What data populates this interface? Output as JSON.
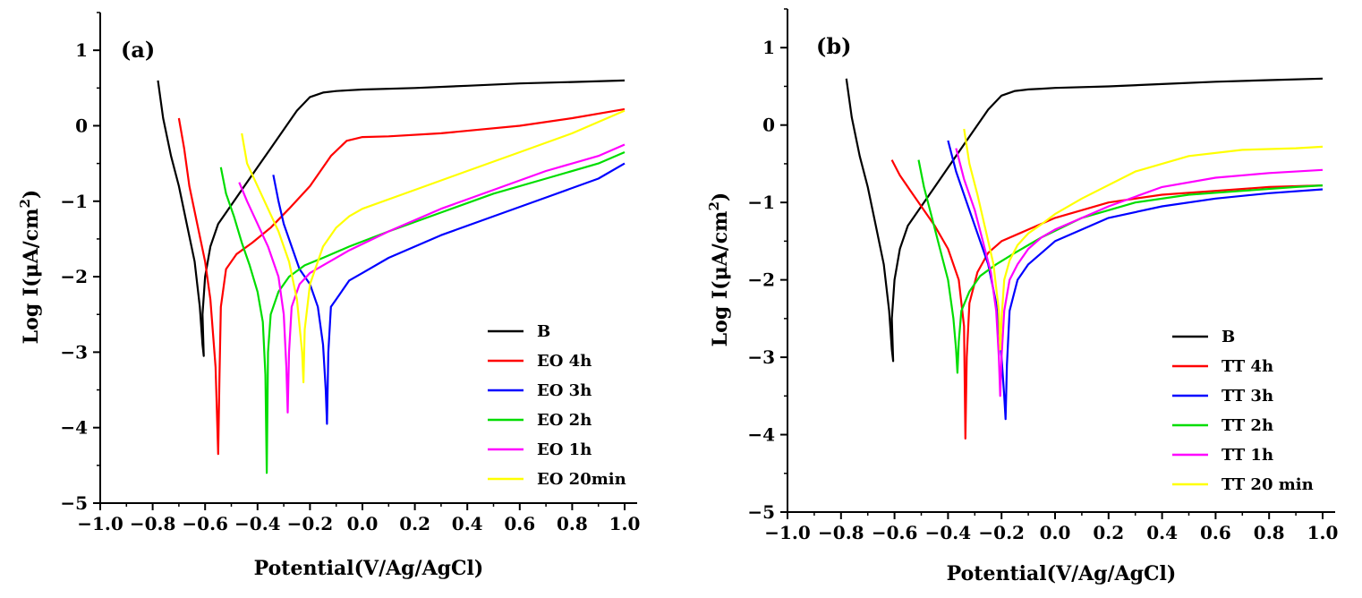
{
  "chart_data": [
    {
      "type": "line",
      "panel_label": "(a)",
      "xlabel": "Potential(V/Ag/AgCl)",
      "ylabel_prefix": "Log I(μA/cm",
      "ylabel_sup": "2",
      "ylabel_suffix": ")",
      "xlim": [
        -1.0,
        1.0
      ],
      "ylim": [
        -5,
        1.5
      ],
      "xticks": [
        -1.0,
        -0.8,
        -0.6,
        -0.4,
        -0.2,
        0.0,
        0.2,
        0.4,
        0.6,
        0.8,
        1.0
      ],
      "xtick_labels": [
        "−1.0",
        "−0.8",
        "−0.6",
        "−0.4",
        "−0.2",
        "0.0",
        "0.2",
        "0.4",
        "0.6",
        "0.8",
        "1.0"
      ],
      "yticks": [
        -5,
        -4,
        -3,
        -2,
        -1,
        0,
        1
      ],
      "ytick_labels": [
        "−5",
        "−4",
        "−3",
        "−2",
        "−1",
        "0",
        "1"
      ],
      "legend_position": "bottom-right",
      "series": [
        {
          "name": "B",
          "color": "#000000",
          "x": [
            -0.78,
            -0.76,
            -0.73,
            -0.7,
            -0.67,
            -0.64,
            -0.62,
            -0.61,
            -0.605,
            -0.61,
            -0.6,
            -0.58,
            -0.55,
            -0.5,
            -0.45,
            -0.4,
            -0.35,
            -0.3,
            -0.25,
            -0.2,
            -0.15,
            -0.1,
            -0.05,
            0.0,
            0.2,
            0.4,
            0.6,
            0.8,
            1.0
          ],
          "y": [
            0.6,
            0.1,
            -0.4,
            -0.8,
            -1.3,
            -1.8,
            -2.4,
            -2.9,
            -3.05,
            -2.5,
            -2.0,
            -1.6,
            -1.3,
            -1.05,
            -0.8,
            -0.55,
            -0.3,
            -0.05,
            0.2,
            0.38,
            0.44,
            0.46,
            0.47,
            0.48,
            0.5,
            0.53,
            0.56,
            0.58,
            0.6
          ]
        },
        {
          "name": "EO 4h",
          "color": "#ff0000",
          "x": [
            -0.7,
            -0.68,
            -0.66,
            -0.63,
            -0.6,
            -0.58,
            -0.56,
            -0.55,
            -0.545,
            -0.54,
            -0.52,
            -0.48,
            -0.42,
            -0.35,
            -0.28,
            -0.2,
            -0.12,
            -0.06,
            0.0,
            0.1,
            0.3,
            0.6,
            0.8,
            1.0
          ],
          "y": [
            0.1,
            -0.3,
            -0.8,
            -1.3,
            -1.8,
            -2.3,
            -3.2,
            -4.35,
            -3.3,
            -2.4,
            -1.9,
            -1.7,
            -1.55,
            -1.35,
            -1.1,
            -0.8,
            -0.4,
            -0.2,
            -0.15,
            -0.14,
            -0.1,
            0.0,
            0.1,
            0.22
          ]
        },
        {
          "name": "EO 3h",
          "color": "#0000ff",
          "x": [
            -0.34,
            -0.32,
            -0.3,
            -0.27,
            -0.24,
            -0.2,
            -0.17,
            -0.15,
            -0.14,
            -0.135,
            -0.13,
            -0.12,
            -0.1,
            -0.05,
            0.0,
            0.1,
            0.3,
            0.5,
            0.7,
            0.9,
            1.0
          ],
          "y": [
            -0.65,
            -1.0,
            -1.3,
            -1.6,
            -1.9,
            -2.1,
            -2.4,
            -2.9,
            -3.5,
            -3.95,
            -3.0,
            -2.4,
            -2.3,
            -2.05,
            -1.95,
            -1.75,
            -1.45,
            -1.2,
            -0.95,
            -0.7,
            -0.5
          ]
        },
        {
          "name": "EO 2h",
          "color": "#00dd00",
          "x": [
            -0.54,
            -0.52,
            -0.49,
            -0.46,
            -0.43,
            -0.4,
            -0.38,
            -0.37,
            -0.365,
            -0.36,
            -0.35,
            -0.32,
            -0.28,
            -0.22,
            -0.15,
            -0.05,
            0.1,
            0.3,
            0.5,
            0.7,
            0.9,
            1.0
          ],
          "y": [
            -0.55,
            -0.9,
            -1.2,
            -1.55,
            -1.85,
            -2.2,
            -2.6,
            -3.3,
            -4.6,
            -3.0,
            -2.5,
            -2.2,
            -2.0,
            -1.85,
            -1.75,
            -1.6,
            -1.4,
            -1.15,
            -0.9,
            -0.7,
            -0.5,
            -0.35
          ]
        },
        {
          "name": "EO 1h",
          "color": "#ff00ff",
          "x": [
            -0.47,
            -0.44,
            -0.4,
            -0.36,
            -0.32,
            -0.3,
            -0.29,
            -0.285,
            -0.28,
            -0.27,
            -0.24,
            -0.2,
            -0.15,
            -0.05,
            0.1,
            0.3,
            0.5,
            0.7,
            0.9,
            1.0
          ],
          "y": [
            -0.75,
            -1.0,
            -1.3,
            -1.6,
            -2.0,
            -2.5,
            -3.2,
            -3.8,
            -3.0,
            -2.4,
            -2.1,
            -1.95,
            -1.85,
            -1.65,
            -1.4,
            -1.1,
            -0.85,
            -0.6,
            -0.4,
            -0.25
          ]
        },
        {
          "name": "EO 20min",
          "color": "#ffff00",
          "x": [
            -0.46,
            -0.44,
            -0.4,
            -0.36,
            -0.32,
            -0.28,
            -0.25,
            -0.23,
            -0.225,
            -0.22,
            -0.2,
            -0.15,
            -0.1,
            -0.05,
            0.0,
            0.2,
            0.4,
            0.6,
            0.8,
            1.0
          ],
          "y": [
            -0.1,
            -0.5,
            -0.8,
            -1.1,
            -1.4,
            -1.8,
            -2.3,
            -3.0,
            -3.4,
            -2.7,
            -2.1,
            -1.6,
            -1.35,
            -1.2,
            -1.1,
            -0.85,
            -0.6,
            -0.35,
            -0.1,
            0.2
          ]
        }
      ]
    },
    {
      "type": "line",
      "panel_label": "(b)",
      "xlabel": "Potential(V/Ag/AgCl)",
      "ylabel_prefix": "Log I(μA/cm",
      "ylabel_sup": "2",
      "ylabel_suffix": ")",
      "xlim": [
        -1.0,
        1.0
      ],
      "ylim": [
        -5,
        1.5
      ],
      "xticks": [
        -1.0,
        -0.8,
        -0.6,
        -0.4,
        -0.2,
        0.0,
        0.2,
        0.4,
        0.6,
        0.8,
        1.0
      ],
      "xtick_labels": [
        "−1.0",
        "−0.8",
        "−0.6",
        "−0.4",
        "−0.2",
        "0.0",
        "0.2",
        "0.4",
        "0.6",
        "0.8",
        "1.0"
      ],
      "yticks": [
        -5,
        -4,
        -3,
        -2,
        -1,
        0,
        1
      ],
      "ytick_labels": [
        "−5",
        "−4",
        "−3",
        "−2",
        "−1",
        "0",
        "1"
      ],
      "legend_position": "bottom-right",
      "series": [
        {
          "name": "B",
          "color": "#000000",
          "x": [
            -0.78,
            -0.76,
            -0.73,
            -0.7,
            -0.67,
            -0.64,
            -0.62,
            -0.61,
            -0.605,
            -0.61,
            -0.6,
            -0.58,
            -0.55,
            -0.5,
            -0.45,
            -0.4,
            -0.35,
            -0.3,
            -0.25,
            -0.2,
            -0.15,
            -0.1,
            -0.05,
            0.0,
            0.2,
            0.4,
            0.6,
            0.8,
            1.0
          ],
          "y": [
            0.6,
            0.1,
            -0.4,
            -0.8,
            -1.3,
            -1.8,
            -2.4,
            -2.9,
            -3.05,
            -2.5,
            -2.0,
            -1.6,
            -1.3,
            -1.05,
            -0.8,
            -0.55,
            -0.3,
            -0.05,
            0.2,
            0.38,
            0.44,
            0.46,
            0.47,
            0.48,
            0.5,
            0.53,
            0.56,
            0.58,
            0.6
          ]
        },
        {
          "name": "TT 4h",
          "color": "#ff0000",
          "x": [
            -0.61,
            -0.58,
            -0.54,
            -0.5,
            -0.45,
            -0.4,
            -0.36,
            -0.34,
            -0.335,
            -0.33,
            -0.32,
            -0.29,
            -0.25,
            -0.2,
            -0.1,
            0.0,
            0.2,
            0.4,
            0.6,
            0.8,
            1.0
          ],
          "y": [
            -0.45,
            -0.65,
            -0.85,
            -1.05,
            -1.3,
            -1.6,
            -2.0,
            -2.6,
            -4.05,
            -3.0,
            -2.3,
            -1.9,
            -1.65,
            -1.5,
            -1.35,
            -1.2,
            -1.0,
            -0.9,
            -0.85,
            -0.8,
            -0.78
          ]
        },
        {
          "name": "TT 3h",
          "color": "#0000ff",
          "x": [
            -0.4,
            -0.37,
            -0.33,
            -0.29,
            -0.25,
            -0.22,
            -0.2,
            -0.19,
            -0.185,
            -0.18,
            -0.17,
            -0.14,
            -0.1,
            -0.05,
            0.0,
            0.2,
            0.4,
            0.6,
            0.8,
            1.0
          ],
          "y": [
            -0.2,
            -0.6,
            -1.0,
            -1.4,
            -1.8,
            -2.3,
            -3.0,
            -3.5,
            -3.8,
            -3.1,
            -2.4,
            -2.0,
            -1.8,
            -1.65,
            -1.5,
            -1.2,
            -1.05,
            -0.95,
            -0.88,
            -0.83
          ]
        },
        {
          "name": "TT  2h",
          "color": "#00dd00",
          "x": [
            -0.51,
            -0.49,
            -0.46,
            -0.43,
            -0.4,
            -0.38,
            -0.37,
            -0.365,
            -0.36,
            -0.35,
            -0.32,
            -0.28,
            -0.22,
            -0.15,
            -0.05,
            0.1,
            0.3,
            0.5,
            0.7,
            0.9,
            1.0
          ],
          "y": [
            -0.45,
            -0.8,
            -1.2,
            -1.6,
            -2.0,
            -2.5,
            -2.9,
            -3.2,
            -2.8,
            -2.4,
            -2.15,
            -1.95,
            -1.8,
            -1.65,
            -1.45,
            -1.2,
            -1.0,
            -0.9,
            -0.85,
            -0.8,
            -0.78
          ]
        },
        {
          "name": "TT 1h",
          "color": "#ff00ff",
          "x": [
            -0.37,
            -0.34,
            -0.3,
            -0.27,
            -0.24,
            -0.22,
            -0.21,
            -0.205,
            -0.2,
            -0.19,
            -0.17,
            -0.14,
            -0.1,
            -0.05,
            0.0,
            0.2,
            0.4,
            0.6,
            0.8,
            1.0
          ],
          "y": [
            -0.3,
            -0.7,
            -1.1,
            -1.5,
            -1.9,
            -2.4,
            -3.0,
            -3.5,
            -3.0,
            -2.4,
            -2.0,
            -1.8,
            -1.6,
            -1.45,
            -1.35,
            -1.05,
            -0.8,
            -0.68,
            -0.62,
            -0.58
          ]
        },
        {
          "name": "TT 20 min",
          "color": "#ffff00",
          "x": [
            -0.34,
            -0.32,
            -0.29,
            -0.26,
            -0.23,
            -0.21,
            -0.205,
            -0.2,
            -0.19,
            -0.17,
            -0.14,
            -0.1,
            -0.05,
            0.0,
            0.1,
            0.3,
            0.5,
            0.7,
            0.9,
            1.0
          ],
          "y": [
            -0.05,
            -0.5,
            -0.9,
            -1.35,
            -1.8,
            -2.4,
            -2.9,
            -2.5,
            -2.0,
            -1.75,
            -1.55,
            -1.4,
            -1.28,
            -1.15,
            -0.95,
            -0.6,
            -0.4,
            -0.32,
            -0.3,
            -0.28
          ]
        }
      ]
    }
  ]
}
